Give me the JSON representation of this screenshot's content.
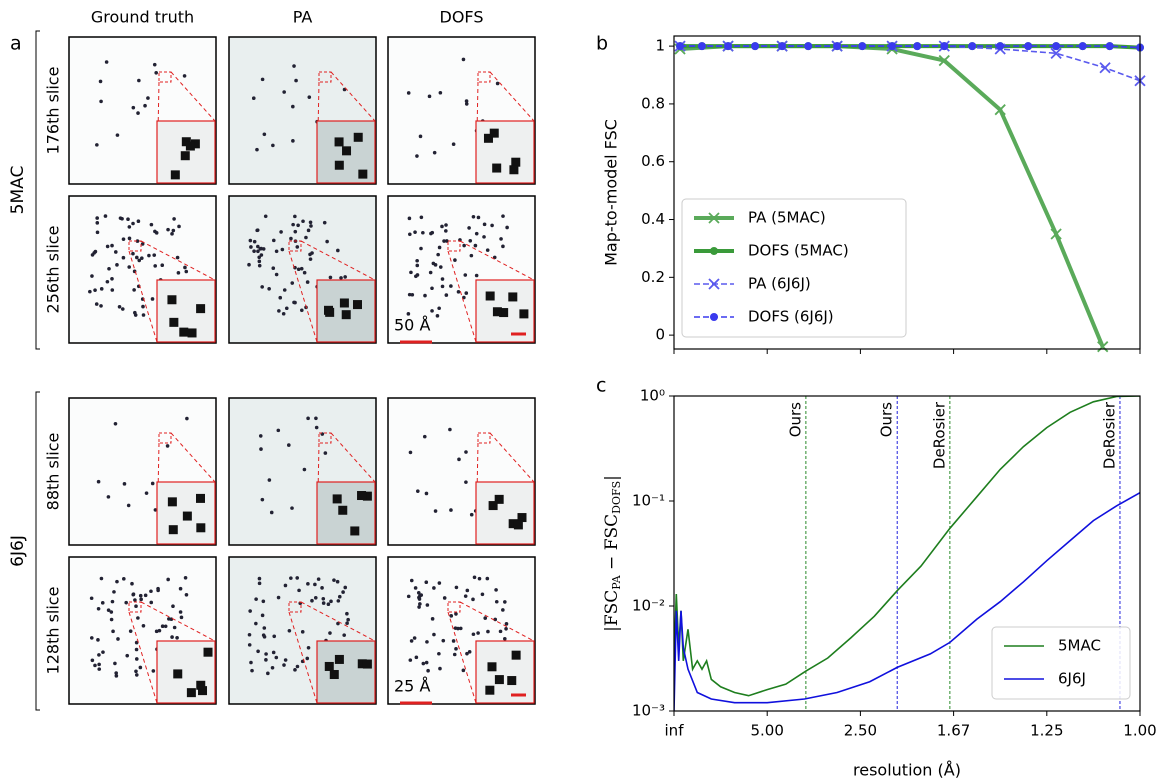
{
  "panel_labels": [
    "a",
    "b",
    "c"
  ],
  "figure_a": {
    "columns": [
      "Ground truth",
      "PA",
      "DOFS"
    ],
    "groups": [
      {
        "name": "5MAC",
        "color": "#2a8a2a",
        "rows": [
          "176th slice",
          "256th slice"
        ],
        "scale_bar": "50 Å"
      },
      {
        "name": "6J6J",
        "color": "#2222dd",
        "rows": [
          "88th slice",
          "128th slice"
        ],
        "scale_bar": "25 Å"
      }
    ]
  },
  "chart_data": [
    {
      "type": "line",
      "ylabel": "Map-to-model FSC",
      "xlim": [
        0,
        1
      ],
      "ylim": [
        -0.048,
        1.035
      ],
      "xticks": [
        0,
        0.2,
        0.4,
        0.6,
        0.8,
        1.0
      ],
      "xtick_labels": false,
      "yticks": [
        0,
        0.2,
        0.4,
        0.6,
        0.8,
        1
      ],
      "legend": "lower left",
      "series": [
        {
          "name": "PA (5MAC)",
          "color": "#5aaa5a",
          "linestyle": "solid",
          "linewidth": 4,
          "marker": "x",
          "x": [
            0.013,
            0.116,
            0.232,
            0.35,
            0.468,
            0.58,
            0.7,
            0.82,
            0.92
          ],
          "values": [
            0.99,
            1.0,
            1.0,
            1.0,
            0.99,
            0.95,
            0.78,
            0.35,
            -0.04
          ]
        },
        {
          "name": "DOFS (5MAC)",
          "color": "#3a9a3a",
          "linestyle": "solid",
          "linewidth": 4,
          "marker": "o",
          "x": [
            0.013,
            0.06,
            0.116,
            0.174,
            0.232,
            0.288,
            0.35,
            0.404,
            0.468,
            0.522,
            0.58,
            0.64,
            0.7,
            0.76,
            0.82,
            0.877,
            0.935,
            1.0
          ],
          "values": [
            1.0,
            1.0,
            1.0,
            1.0,
            1.0,
            1.0,
            1.0,
            1.0,
            1.0,
            1.0,
            1.0,
            1.0,
            1.0,
            1.0,
            1.0,
            1.0,
            1.0,
            0.995
          ]
        },
        {
          "name": "PA (6J6J)",
          "color": "#5a5aee",
          "linestyle": "dashed",
          "linewidth": 1.6,
          "marker": "x",
          "x": [
            0.013,
            0.116,
            0.232,
            0.35,
            0.468,
            0.58,
            0.7,
            0.82,
            0.925,
            1.0
          ],
          "values": [
            1.0,
            1.0,
            1.0,
            1.0,
            1.0,
            1.0,
            0.99,
            0.975,
            0.925,
            0.88
          ]
        },
        {
          "name": "DOFS (6J6J)",
          "color": "#3a3aee",
          "linestyle": "dashed",
          "linewidth": 1.6,
          "marker": "o",
          "x": [
            0.013,
            0.06,
            0.116,
            0.174,
            0.232,
            0.288,
            0.35,
            0.404,
            0.468,
            0.522,
            0.58,
            0.64,
            0.7,
            0.76,
            0.82,
            0.877,
            0.935,
            1.0
          ],
          "values": [
            1.0,
            1.0,
            1.0,
            1.0,
            1.0,
            1.0,
            1.0,
            1.0,
            1.0,
            1.0,
            1.0,
            1.0,
            1.0,
            1.0,
            1.0,
            1.0,
            1.0,
            0.995
          ]
        }
      ]
    },
    {
      "type": "line",
      "xlabel": "resolution (Å)",
      "ylabel_parts": [
        "|FSC",
        "PA",
        " − FSC",
        "DOFS",
        "|"
      ],
      "yscale": "log",
      "xlim": [
        0,
        1
      ],
      "ylim": [
        0.001,
        1
      ],
      "xticks": [
        {
          "value": 0,
          "label": "inf"
        },
        {
          "value": 0.2,
          "label": "5.00"
        },
        {
          "value": 0.4,
          "label": "2.50"
        },
        {
          "value": 0.6,
          "label": "1.67"
        },
        {
          "value": 0.8,
          "label": "1.25"
        },
        {
          "value": 1.0,
          "label": "1.00"
        }
      ],
      "yticks": [
        {
          "value": 0.001,
          "label": "10⁻³"
        },
        {
          "value": 0.01,
          "label": "10⁻²"
        },
        {
          "value": 0.1,
          "label": "10⁻¹"
        },
        {
          "value": 1,
          "label": "10⁰"
        }
      ],
      "legend": "lower right",
      "vlines": [
        {
          "x": 0.283,
          "label": "Ours",
          "color": "#2a8a2a"
        },
        {
          "x": 0.479,
          "label": "Ours",
          "color": "#2222dd"
        },
        {
          "x": 0.592,
          "label": "DeRosier",
          "color": "#2a8a2a"
        },
        {
          "x": 0.957,
          "label": "DeRosier",
          "color": "#2222dd"
        }
      ],
      "series": [
        {
          "name": "5MAC",
          "color": "#1e7e1e",
          "linestyle": "solid",
          "linewidth": 1.6,
          "x": [
            0,
            0.005,
            0.01,
            0.015,
            0.02,
            0.03,
            0.04,
            0.05,
            0.06,
            0.07,
            0.08,
            0.1,
            0.13,
            0.16,
            0.2,
            0.24,
            0.283,
            0.33,
            0.38,
            0.43,
            0.479,
            0.53,
            0.592,
            0.65,
            0.7,
            0.75,
            0.8,
            0.85,
            0.9,
            0.95,
            1.0
          ],
          "values": [
            0.003,
            0.013,
            0.004,
            0.009,
            0.003,
            0.006,
            0.0025,
            0.003,
            0.0025,
            0.003,
            0.002,
            0.0017,
            0.0015,
            0.0014,
            0.0016,
            0.0018,
            0.0024,
            0.0032,
            0.005,
            0.008,
            0.014,
            0.024,
            0.055,
            0.11,
            0.2,
            0.33,
            0.5,
            0.7,
            0.88,
            0.99,
            1.0
          ]
        },
        {
          "name": "6J6J",
          "color": "#1010dd",
          "linestyle": "solid",
          "linewidth": 1.6,
          "x": [
            0,
            0.005,
            0.01,
            0.015,
            0.02,
            0.03,
            0.05,
            0.08,
            0.13,
            0.2,
            0.28,
            0.35,
            0.42,
            0.479,
            0.55,
            0.592,
            0.65,
            0.7,
            0.75,
            0.8,
            0.85,
            0.9,
            0.95,
            1.0
          ],
          "values": [
            0.001,
            0.009,
            0.003,
            0.009,
            0.004,
            0.0025,
            0.0015,
            0.0013,
            0.0012,
            0.0012,
            0.0013,
            0.0015,
            0.0019,
            0.0026,
            0.0035,
            0.0045,
            0.0075,
            0.011,
            0.017,
            0.027,
            0.042,
            0.065,
            0.09,
            0.12
          ]
        }
      ]
    }
  ]
}
